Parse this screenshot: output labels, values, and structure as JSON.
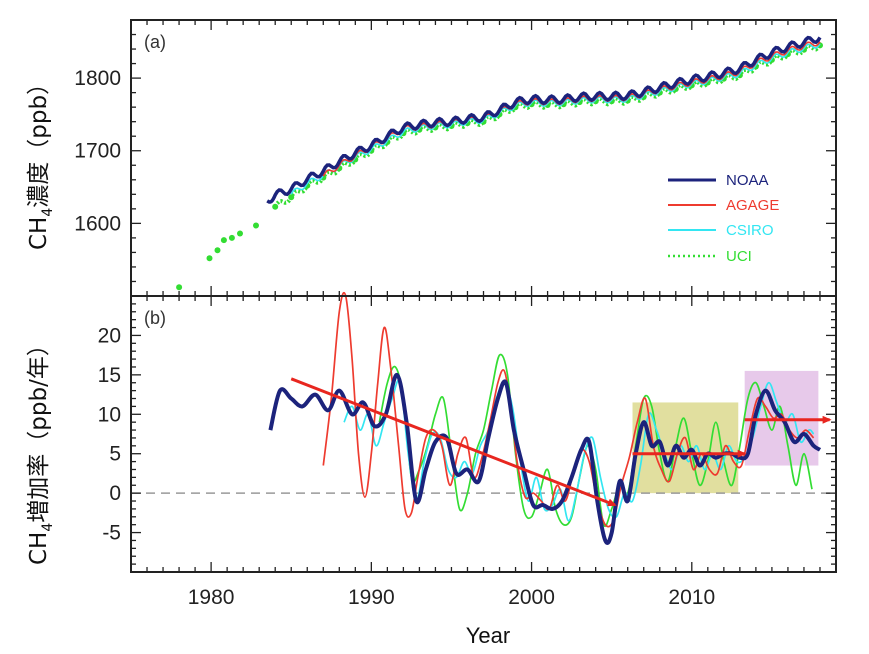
{
  "chart_data": [
    {
      "panel": "(a)",
      "type": "line",
      "ylabel_main": "CH",
      "ylabel_sub": "4",
      "ylabel_rest": "濃度（ppb）",
      "ylim": [
        1500,
        1880
      ],
      "xlim": [
        1975,
        2019
      ],
      "yticks": [
        1600,
        1700,
        1800
      ],
      "legend": [
        {
          "name": "NOAA",
          "color": "#1c237c",
          "style": "solid"
        },
        {
          "name": "AGAGE",
          "color": "#ee3b2f",
          "style": "solid"
        },
        {
          "name": "CSIRO",
          "color": "#33e6f2",
          "style": "solid"
        },
        {
          "name": "UCI",
          "color": "#33dd33",
          "style": "dotted"
        }
      ],
      "series": [
        {
          "name": "NOAA",
          "x": [
            1983.5,
            1984,
            1985,
            1986,
            1987,
            1988,
            1989,
            1990,
            1991,
            1992,
            1993,
            1994,
            1995,
            1996,
            1997,
            1998,
            1999,
            2000,
            2001,
            2002,
            2003,
            2004,
            2005,
            2006,
            2007,
            2008,
            2009,
            2010,
            2011,
            2012,
            2013,
            2014,
            2015,
            2016,
            2017,
            2018
          ],
          "values": [
            1631,
            1639,
            1647,
            1661,
            1672,
            1685,
            1697,
            1707,
            1720,
            1732,
            1736,
            1739,
            1740,
            1744,
            1746,
            1756,
            1767,
            1771,
            1770,
            1771,
            1774,
            1775,
            1775,
            1776,
            1781,
            1787,
            1793,
            1798,
            1802,
            1807,
            1813,
            1825,
            1835,
            1843,
            1849,
            1856
          ]
        },
        {
          "name": "AGAGE",
          "x": [
            1987,
            1988,
            1989,
            1990,
            1991,
            1992,
            1993,
            1994,
            1995,
            1996,
            1997,
            1998,
            1999,
            2000,
            2001,
            2002,
            2003,
            2004,
            2005,
            2006,
            2007,
            2008,
            2009,
            2010,
            2011,
            2012,
            2013,
            2014,
            2015,
            2016,
            2017,
            2018
          ],
          "values": [
            1665,
            1680,
            1693,
            1705,
            1717,
            1730,
            1733,
            1736,
            1738,
            1742,
            1744,
            1754,
            1764,
            1768,
            1767,
            1768,
            1771,
            1772,
            1772,
            1773,
            1778,
            1784,
            1789,
            1794,
            1798,
            1803,
            1809,
            1821,
            1830,
            1838,
            1844,
            1850
          ]
        },
        {
          "name": "CSIRO",
          "x": [
            1985,
            1986,
            1987,
            1988,
            1989,
            1990,
            1991,
            1992,
            1993,
            1994,
            1995,
            1996,
            1997,
            1998,
            1999,
            2000,
            2001,
            2002,
            2003,
            2004,
            2005,
            2006,
            2007,
            2008,
            2009,
            2010,
            2011,
            2012,
            2013,
            2014,
            2015,
            2016,
            2017,
            2018
          ],
          "values": [
            1640,
            1655,
            1666,
            1679,
            1691,
            1702,
            1714,
            1726,
            1731,
            1734,
            1736,
            1740,
            1742,
            1752,
            1762,
            1766,
            1765,
            1766,
            1769,
            1770,
            1770,
            1771,
            1776,
            1782,
            1787,
            1792,
            1796,
            1801,
            1806,
            1818,
            1827,
            1835,
            1841,
            1847
          ]
        },
        {
          "name": "UCI",
          "x": [
            1978,
            1979.9,
            1980.4,
            1980.8,
            1981.3,
            1981.8,
            1982.8,
            1984,
            1985,
            1986,
            1987,
            1988,
            1989,
            1990,
            1991,
            1992,
            1993,
            1994,
            1995,
            1996,
            1997,
            1998,
            1999,
            2000,
            2001,
            2002,
            2003,
            2004,
            2005,
            2006,
            2007,
            2008,
            2009,
            2010,
            2011,
            2012,
            2013,
            2014,
            2015,
            2016,
            2017,
            2018
          ],
          "values": [
            1512,
            1552,
            1563,
            1577,
            1580,
            1586,
            1597,
            1623,
            1636,
            1652,
            1663,
            1676,
            1688,
            1700,
            1712,
            1724,
            1729,
            1732,
            1734,
            1738,
            1740,
            1750,
            1760,
            1764,
            1763,
            1764,
            1767,
            1768,
            1768,
            1769,
            1774,
            1780,
            1785,
            1790,
            1794,
            1799,
            1804,
            1816,
            1825,
            1833,
            1839,
            1845
          ]
        }
      ]
    },
    {
      "panel": "(b)",
      "type": "line",
      "xlabel": "Year",
      "ylabel_main": "CH",
      "ylabel_sub": "4",
      "ylabel_rest": "増加率（ppb/年）",
      "ylim": [
        -10,
        25
      ],
      "xlim": [
        1975,
        2019
      ],
      "yticks": [
        -5,
        0,
        5,
        10,
        15,
        20
      ],
      "xticks": [
        1980,
        1990,
        2000,
        2010
      ],
      "zero_line": "dashed",
      "series": [
        {
          "name": "NOAA",
          "x": [
            1983.7,
            1984.3,
            1985,
            1985.7,
            1986.5,
            1987.3,
            1988,
            1988.8,
            1989.5,
            1990.2,
            1990.9,
            1991.6,
            1992.2,
            1992.8,
            1993.4,
            1994,
            1994.7,
            1995.3,
            1996,
            1996.7,
            1997.3,
            1997.9,
            1998.4,
            1998.9,
            1999.5,
            2000.1,
            2000.7,
            2001.3,
            2001.9,
            2002.5,
            2003.1,
            2003.6,
            2004.1,
            2004.6,
            2005,
            2005.5,
            2006,
            2006.5,
            2007,
            2007.5,
            2008,
            2008.5,
            2009,
            2009.5,
            2010,
            2010.5,
            2011,
            2011.5,
            2012,
            2012.5,
            2013,
            2013.5,
            2014,
            2014.6,
            2015.2,
            2015.8,
            2016.4,
            2017,
            2017.6,
            2018
          ],
          "values": [
            8,
            13,
            12,
            11,
            12.5,
            10.5,
            13,
            10,
            11.5,
            8.5,
            10,
            15,
            9,
            -1,
            3,
            6.5,
            7,
            2.5,
            3,
            1.5,
            7,
            12,
            14,
            8,
            3,
            -1.5,
            -1.5,
            -2,
            -1,
            2,
            5.5,
            6.5,
            -1,
            -6,
            -5,
            1.5,
            -1,
            5,
            9,
            6,
            6.5,
            3.5,
            6,
            4.5,
            5.5,
            3.5,
            5,
            4.5,
            5,
            5,
            4.5,
            5,
            10,
            13,
            10.5,
            9,
            6.5,
            7.5,
            6,
            5.5
          ]
        },
        {
          "name": "AGAGE",
          "x": [
            1987,
            1987.5,
            1988,
            1988.4,
            1988.8,
            1989.2,
            1989.6,
            1990,
            1990.4,
            1990.8,
            1991.2,
            1991.7,
            1992.1,
            1992.5,
            1992.9,
            1993.4,
            1993.9,
            1994.4,
            1994.9,
            1995.4,
            1995.9,
            1996.4,
            1996.9,
            1997.4,
            1997.9,
            1998.3,
            1998.7,
            1999.1,
            1999.6,
            2000.1,
            2000.6,
            2001.1,
            2001.6,
            2002.1,
            2002.6,
            2003.1,
            2003.6,
            2004.1,
            2004.6,
            2005.1,
            2005.6,
            2006.1,
            2006.6,
            2007.1,
            2007.6,
            2008.1,
            2008.6,
            2009.1,
            2009.6,
            2010.1,
            2010.6,
            2011.1,
            2011.6,
            2012.1,
            2012.6,
            2013.1,
            2013.6,
            2014.1,
            2014.6,
            2015.1,
            2015.6,
            2016.1,
            2016.6,
            2017.1,
            2017.6
          ],
          "values": [
            3.5,
            12,
            23,
            25,
            17,
            5,
            -0.5,
            5,
            14,
            21,
            16,
            6,
            -2,
            -2.5,
            2,
            7,
            8,
            6,
            1,
            5,
            7,
            2,
            4.5,
            9,
            14,
            15.5,
            11,
            4,
            -0.5,
            0,
            -1,
            -2,
            1,
            -1,
            2.5,
            5.5,
            4,
            -1,
            -4,
            -3.5,
            1,
            4.5,
            9,
            12,
            6,
            3,
            1.5,
            5,
            7,
            3,
            5,
            3,
            2.5,
            6,
            4,
            3.5,
            8,
            12,
            11,
            9.5,
            10,
            8,
            7,
            8,
            7
          ]
        },
        {
          "name": "CSIRO",
          "x": [
            1988.3,
            1988.8,
            1989.3,
            1989.8,
            1990.3,
            1990.8,
            1991.3,
            1991.8,
            1992.3,
            1992.8,
            1993.3,
            1993.8,
            1994.3,
            1994.8,
            1995.3,
            1995.8,
            1996.3,
            1996.8,
            1997.3,
            1997.8,
            1998.3,
            1998.8,
            1999.3,
            1999.8,
            2000.3,
            2000.8,
            2001.3,
            2001.8,
            2002.3,
            2002.8,
            2003.3,
            2003.8,
            2004.3,
            2004.8,
            2005.3,
            2005.8,
            2006.3,
            2006.8,
            2007.3,
            2007.8,
            2008.3,
            2008.8,
            2009.3,
            2009.8,
            2010.3,
            2010.8,
            2011.3,
            2011.8,
            2012.3,
            2012.8,
            2013.3,
            2013.8,
            2014.3,
            2014.8,
            2015.3,
            2015.8,
            2016.3,
            2016.8,
            2017.3,
            2017.6
          ],
          "values": [
            9,
            11,
            8,
            10,
            6,
            9,
            12,
            14,
            5,
            -1,
            4,
            7.5,
            7,
            3,
            2,
            4,
            2.5,
            6,
            8,
            12,
            14,
            11,
            4,
            -1,
            2,
            -2,
            -1.5,
            0.5,
            -3.5,
            0,
            5,
            7,
            2,
            -2,
            -3,
            0,
            -1,
            3.5,
            10,
            8,
            5,
            3,
            6,
            4,
            6,
            3,
            5,
            3,
            6,
            4,
            4.5,
            7,
            11,
            14,
            11.5,
            9,
            10,
            6.5,
            8,
            7.5
          ]
        },
        {
          "name": "UCI",
          "x": [
            1990.5,
            1991,
            1991.5,
            1992,
            1992.5,
            1993,
            1993.5,
            1994,
            1994.5,
            1995,
            1995.5,
            1996,
            1996.5,
            1997,
            1997.5,
            1998,
            1998.5,
            1999,
            1999.5,
            2000,
            2000.5,
            2001,
            2001.5,
            2002,
            2002.5,
            2003,
            2003.5,
            2004,
            2004.5,
            2005,
            2005.5,
            2006,
            2006.5,
            2007,
            2007.5,
            2008,
            2008.5,
            2009,
            2009.5,
            2010,
            2010.5,
            2011,
            2011.5,
            2012,
            2012.5,
            2013,
            2013.5,
            2014,
            2014.5,
            2015,
            2015.5,
            2016,
            2016.5,
            2017,
            2017.5
          ],
          "values": [
            9,
            14,
            16,
            12,
            2,
            3,
            6,
            10,
            12,
            5,
            -2,
            0,
            5,
            8,
            13,
            17.5,
            15,
            5,
            -2,
            -3,
            0,
            3,
            -2,
            -4,
            -3,
            2,
            6,
            3,
            -4,
            -2,
            1,
            0,
            6,
            12,
            11,
            5,
            1.5,
            6,
            9.5,
            5,
            1,
            4,
            9,
            4,
            1,
            6,
            12,
            14,
            11,
            8,
            11,
            6,
            1,
            5,
            0.5
          ]
        }
      ],
      "trend_arrows": [
        {
          "from": [
            1985,
            14.5
          ],
          "to": [
            2005.2,
            -1.5
          ],
          "color": "#e8261f"
        },
        {
          "from": [
            2006.3,
            5
          ],
          "to": [
            2013.3,
            5
          ],
          "color": "#e8261f"
        },
        {
          "from": [
            2013.3,
            9.3
          ],
          "to": [
            2018.6,
            9.3
          ],
          "color": "#e8261f"
        }
      ],
      "shaded_regions": [
        {
          "x": [
            2006.3,
            2012.9
          ],
          "y": [
            0,
            11.5
          ],
          "color": "#dcd98e"
        },
        {
          "x": [
            2013.3,
            2017.9
          ],
          "y": [
            3.5,
            15.5
          ],
          "color": "#e3bfe6"
        }
      ]
    }
  ]
}
